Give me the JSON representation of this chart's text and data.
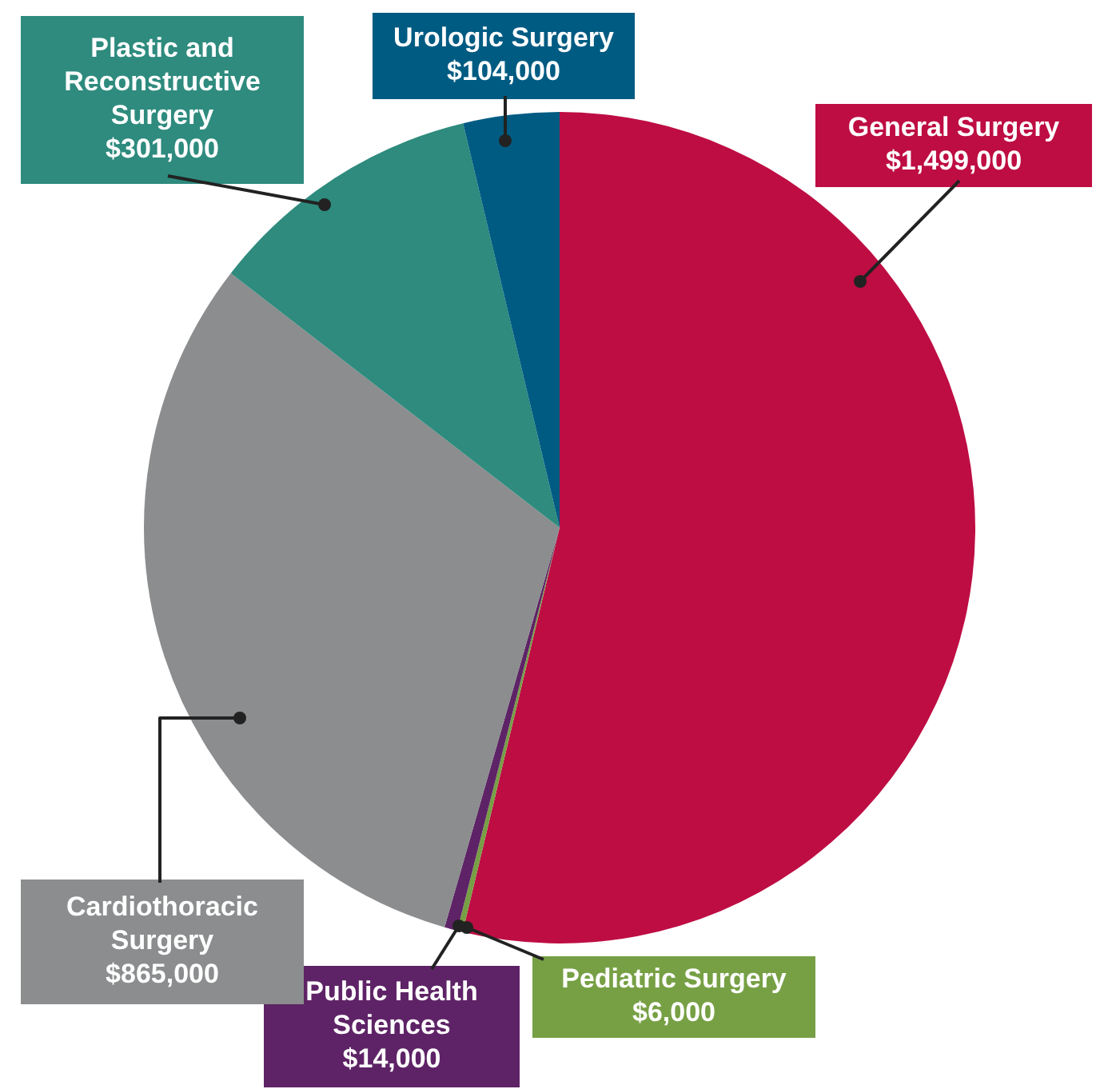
{
  "chart_data": {
    "type": "pie",
    "categories": [
      "General Surgery",
      "Pediatric Surgery",
      "Public Health Sciences",
      "Cardiothoracic Surgery",
      "Plastic and Reconstructive Surgery",
      "Urologic Surgery"
    ],
    "values": [
      1499000,
      6000,
      14000,
      865000,
      301000,
      104000
    ],
    "colors": [
      "#be0d43",
      "#77a045",
      "#5e2366",
      "#8b8d8e",
      "#2e8b7e",
      "#005b82"
    ],
    "value_labels": [
      "$1,499,000",
      "$6,000",
      "$14,000",
      "$865,000",
      "$301,000",
      "$104,000"
    ],
    "legend": false
  }
}
